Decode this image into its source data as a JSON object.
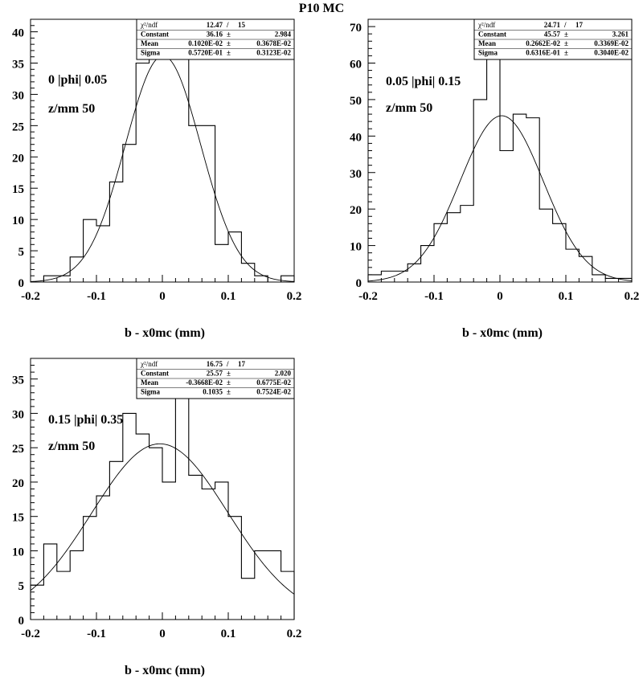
{
  "page": {
    "title": "P10 MC"
  },
  "chart_data": [
    {
      "type": "bar",
      "subtype": "histogram-with-gaussian-fit",
      "xlabel": "b - x0mc (mm)",
      "ylabel": "",
      "xlim": [
        -0.2,
        0.2
      ],
      "ylim": [
        0,
        42
      ],
      "xticks": [
        "-0.2",
        "-0.1",
        "0",
        "0.1",
        "0.2"
      ],
      "yticks": [
        "0",
        "5",
        "10",
        "15",
        "20",
        "25",
        "30",
        "35",
        "40"
      ],
      "ytick_values": [
        0,
        5,
        10,
        15,
        20,
        25,
        30,
        35,
        40
      ],
      "annotations": [
        "0   |phi|   0.05",
        "z/mm   50"
      ],
      "stats": {
        "rows": [
          {
            "label": "χ²/ndf",
            "value": "12.47",
            "sep": "/",
            "error": "15"
          },
          {
            "label": "Constant",
            "value": "36.16",
            "sep": "±",
            "error": "2.984"
          },
          {
            "label": "Mean",
            "value": "0.1020E-02",
            "sep": "±",
            "error": "0.3678E-02"
          },
          {
            "label": "Sigma",
            "value": "0.5720E-01",
            "sep": "±",
            "error": "0.3123E-02"
          }
        ]
      },
      "fit": {
        "constant": 36.16,
        "mean": 0.00102,
        "sigma": 0.0572
      },
      "bin_edges": [
        -0.2,
        -0.18,
        -0.16,
        -0.14,
        -0.12,
        -0.1,
        -0.08,
        -0.06,
        -0.04,
        -0.02,
        0.0,
        0.02,
        0.04,
        0.06,
        0.08,
        0.1,
        0.12,
        0.14,
        0.16,
        0.18,
        0.2
      ],
      "values": [
        0,
        1,
        1,
        4,
        10,
        9,
        16,
        22,
        35,
        37,
        38,
        37,
        25,
        25,
        6,
        8,
        3,
        1,
        0,
        1
      ]
    },
    {
      "type": "bar",
      "subtype": "histogram-with-gaussian-fit",
      "xlabel": "b - x0mc (mm)",
      "ylabel": "",
      "xlim": [
        -0.2,
        0.2
      ],
      "ylim": [
        0,
        72
      ],
      "xticks": [
        "-0.2",
        "-0.1",
        "0",
        "0.1",
        "0.2"
      ],
      "yticks": [
        "0",
        "10",
        "20",
        "30",
        "40",
        "50",
        "60",
        "70"
      ],
      "ytick_values": [
        0,
        10,
        20,
        30,
        40,
        50,
        60,
        70
      ],
      "annotations": [
        "0.05   |phi|   0.15",
        "z/mm   50"
      ],
      "stats": {
        "rows": [
          {
            "label": "χ²/ndf",
            "value": "24.71",
            "sep": "/",
            "error": "17"
          },
          {
            "label": "Constant",
            "value": "45.57",
            "sep": "±",
            "error": "3.261"
          },
          {
            "label": "Mean",
            "value": "0.2662E-02",
            "sep": "±",
            "error": "0.3369E-02"
          },
          {
            "label": "Sigma",
            "value": "0.6316E-01",
            "sep": "±",
            "error": "0.3040E-02"
          }
        ]
      },
      "fit": {
        "constant": 45.57,
        "mean": 0.002662,
        "sigma": 0.06316
      },
      "bin_edges": [
        -0.2,
        -0.18,
        -0.16,
        -0.14,
        -0.12,
        -0.1,
        -0.08,
        -0.06,
        -0.04,
        -0.02,
        0.0,
        0.02,
        0.04,
        0.06,
        0.08,
        0.1,
        0.12,
        0.14,
        0.16,
        0.18,
        0.2
      ],
      "values": [
        2,
        3,
        3,
        5,
        10,
        16,
        19,
        21,
        50,
        69,
        36,
        46,
        45,
        20,
        16,
        9,
        7,
        2,
        1,
        1
      ]
    },
    {
      "type": "bar",
      "subtype": "histogram-with-gaussian-fit",
      "xlabel": "b - x0mc (mm)",
      "ylabel": "",
      "xlim": [
        -0.2,
        0.2
      ],
      "ylim": [
        0,
        38
      ],
      "xticks": [
        "-0.2",
        "-0.1",
        "0",
        "0.1",
        "0.2"
      ],
      "yticks": [
        "0",
        "5",
        "10",
        "15",
        "20",
        "25",
        "30",
        "35"
      ],
      "ytick_values": [
        0,
        5,
        10,
        15,
        20,
        25,
        30,
        35
      ],
      "annotations": [
        "0.15   |phi|   0.35",
        "z/mm   50"
      ],
      "stats": {
        "rows": [
          {
            "label": "χ²/ndf",
            "value": "16.75",
            "sep": "/",
            "error": "17"
          },
          {
            "label": "Constant",
            "value": "25.57",
            "sep": "±",
            "error": "2.020"
          },
          {
            "label": "Mean",
            "value": "-0.3668E-02",
            "sep": "±",
            "error": "0.6775E-02"
          },
          {
            "label": "Sigma",
            "value": "0.1035",
            "sep": "±",
            "error": "0.7524E-02"
          }
        ]
      },
      "fit": {
        "constant": 25.57,
        "mean": -0.003668,
        "sigma": 0.1035
      },
      "bin_edges": [
        -0.2,
        -0.18,
        -0.16,
        -0.14,
        -0.12,
        -0.1,
        -0.08,
        -0.06,
        -0.04,
        -0.02,
        0.0,
        0.02,
        0.04,
        0.06,
        0.08,
        0.1,
        0.12,
        0.14,
        0.16,
        0.18,
        0.2
      ],
      "values": [
        5,
        11,
        7,
        10,
        15,
        18,
        23,
        30,
        27,
        25,
        20,
        34,
        21,
        19,
        20,
        15,
        6,
        10,
        10,
        7
      ]
    }
  ]
}
